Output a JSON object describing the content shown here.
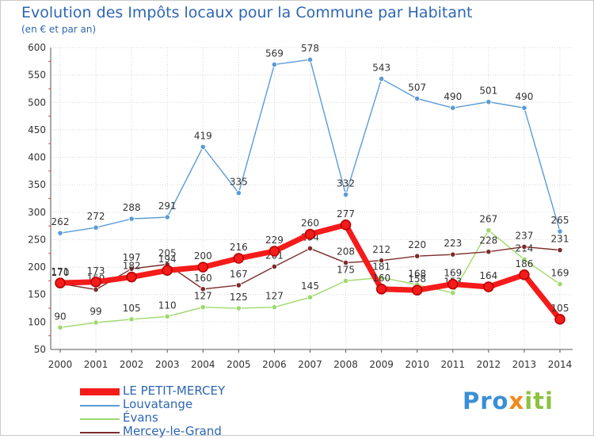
{
  "chart_data": {
    "type": "line",
    "title": "Evolution des Impôts locaux pour la Commune par Habitant",
    "subtitle": "(en € et par an)",
    "xlabel": "",
    "ylabel": "",
    "ylim": [
      50,
      600
    ],
    "yticks": [
      50,
      100,
      150,
      200,
      250,
      300,
      350,
      400,
      450,
      500,
      550,
      600
    ],
    "categories": [
      "2000",
      "2001",
      "2002",
      "2003",
      "2004",
      "2005",
      "2006",
      "2007",
      "2008",
      "2009",
      "2010",
      "2011",
      "2012",
      "2013",
      "2014"
    ],
    "grid": true,
    "legend_position": "bottom-left",
    "series": [
      {
        "name": "Louvatange",
        "color": "#5b9bd5",
        "values": [
          262,
          272,
          288,
          291,
          419,
          335,
          569,
          578,
          332,
          543,
          507,
          490,
          501,
          490,
          265
        ]
      },
      {
        "name": "Évans",
        "color": "#9ed96b",
        "values": [
          90,
          99,
          105,
          110,
          127,
          125,
          127,
          145,
          175,
          181,
          168,
          153,
          267,
          214,
          169
        ]
      },
      {
        "name": "Mercey-le-Grand",
        "color": "#7d2b2b",
        "values": [
          170,
          159,
          197,
          205,
          160,
          167,
          201,
          234,
          208,
          212,
          220,
          223,
          228,
          237,
          231
        ]
      },
      {
        "name": "LE PETIT-MERCEY",
        "color": "#f41b1b",
        "values": [
          171,
          173,
          182,
          194,
          200,
          216,
          229,
          260,
          277,
          160,
          158,
          169,
          164,
          186,
          105
        ]
      }
    ],
    "legend": [
      "LE PETIT-MERCEY",
      "Louvatange",
      "Évans",
      "Mercey-le-Grand"
    ]
  },
  "brand": {
    "part1": "Pro",
    "part2": "x",
    "part3": "iti"
  }
}
